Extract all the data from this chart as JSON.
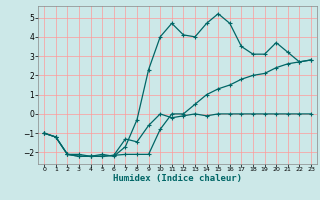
{
  "xlabel": "Humidex (Indice chaleur)",
  "bg_color": "#cce8e8",
  "line_color": "#006666",
  "grid_color": "#ff9999",
  "xlim": [
    -0.5,
    23.5
  ],
  "ylim": [
    -2.6,
    5.6
  ],
  "xticks": [
    0,
    1,
    2,
    3,
    4,
    5,
    6,
    7,
    8,
    9,
    10,
    11,
    12,
    13,
    14,
    15,
    16,
    17,
    18,
    19,
    20,
    21,
    22,
    23
  ],
  "yticks": [
    -2,
    -1,
    0,
    1,
    2,
    3,
    4,
    5
  ],
  "series2_x": [
    0,
    1,
    2,
    3,
    4,
    5,
    6,
    7,
    8,
    9,
    10,
    11,
    12,
    13,
    14,
    15,
    16,
    17,
    18,
    19,
    20,
    21,
    22,
    23
  ],
  "series2_y": [
    -1.0,
    -1.2,
    -2.1,
    -2.2,
    -2.2,
    -2.1,
    -2.2,
    -1.7,
    -0.3,
    2.3,
    4.0,
    4.7,
    4.1,
    4.0,
    4.7,
    5.2,
    4.7,
    3.5,
    3.1,
    3.1,
    3.7,
    3.2,
    2.7,
    2.8
  ],
  "series3_x": [
    0,
    1,
    2,
    3,
    4,
    5,
    6,
    7,
    8,
    9,
    10,
    11,
    12,
    13,
    14,
    15,
    16,
    17,
    18,
    19,
    20,
    21,
    22,
    23
  ],
  "series3_y": [
    -1.0,
    -1.2,
    -2.1,
    -2.2,
    -2.2,
    -2.2,
    -2.15,
    -2.1,
    -2.1,
    -2.1,
    -0.8,
    0.0,
    0.0,
    0.5,
    1.0,
    1.3,
    1.5,
    1.8,
    2.0,
    2.1,
    2.4,
    2.6,
    2.7,
    2.8
  ],
  "series1_x": [
    0,
    1,
    2,
    3,
    4,
    5,
    6,
    7,
    8,
    9,
    10,
    11,
    12,
    13,
    14,
    15,
    16,
    17,
    18,
    19,
    20,
    21,
    22,
    23
  ],
  "series1_y": [
    -1.0,
    -1.2,
    -2.1,
    -2.1,
    -2.2,
    -2.2,
    -2.15,
    -1.3,
    -1.45,
    -0.6,
    0.0,
    -0.2,
    -0.1,
    0.0,
    -0.1,
    0.0,
    0.0,
    0.0,
    0.0,
    0.0,
    0.0,
    0.0,
    0.0,
    0.0
  ]
}
